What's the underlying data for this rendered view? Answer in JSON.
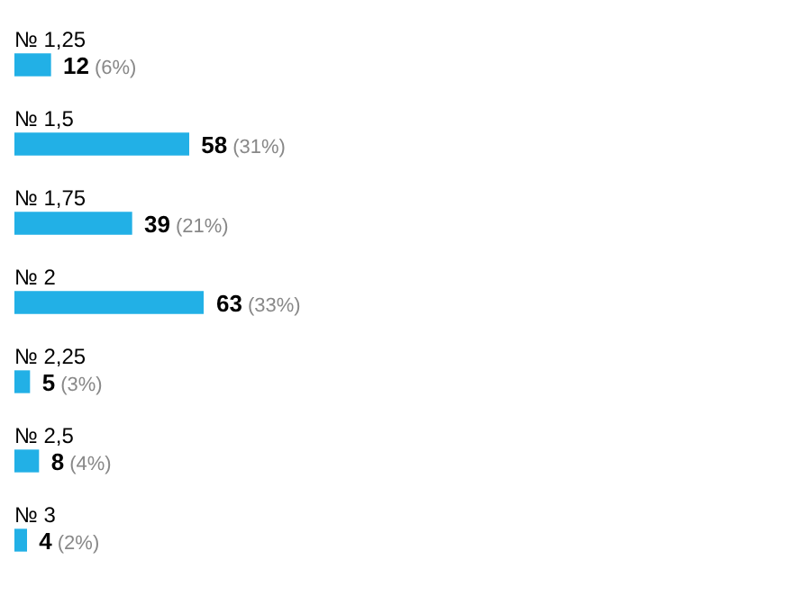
{
  "chart_data": {
    "type": "bar",
    "orientation": "horizontal",
    "categories": [
      "№ 1,25",
      "№ 1,5",
      "№ 1,75",
      "№ 2",
      "№ 2,25",
      "№ 2,5",
      "№ 3"
    ],
    "values": [
      12,
      58,
      39,
      63,
      5,
      8,
      4
    ],
    "value_labels": [
      "12 (6%)",
      "58 (31%)",
      "39 (21%)",
      "63 (33%)",
      "5 (3%)",
      "8 (4%)",
      "4 (2%)"
    ],
    "color": "#22b0e6"
  }
}
